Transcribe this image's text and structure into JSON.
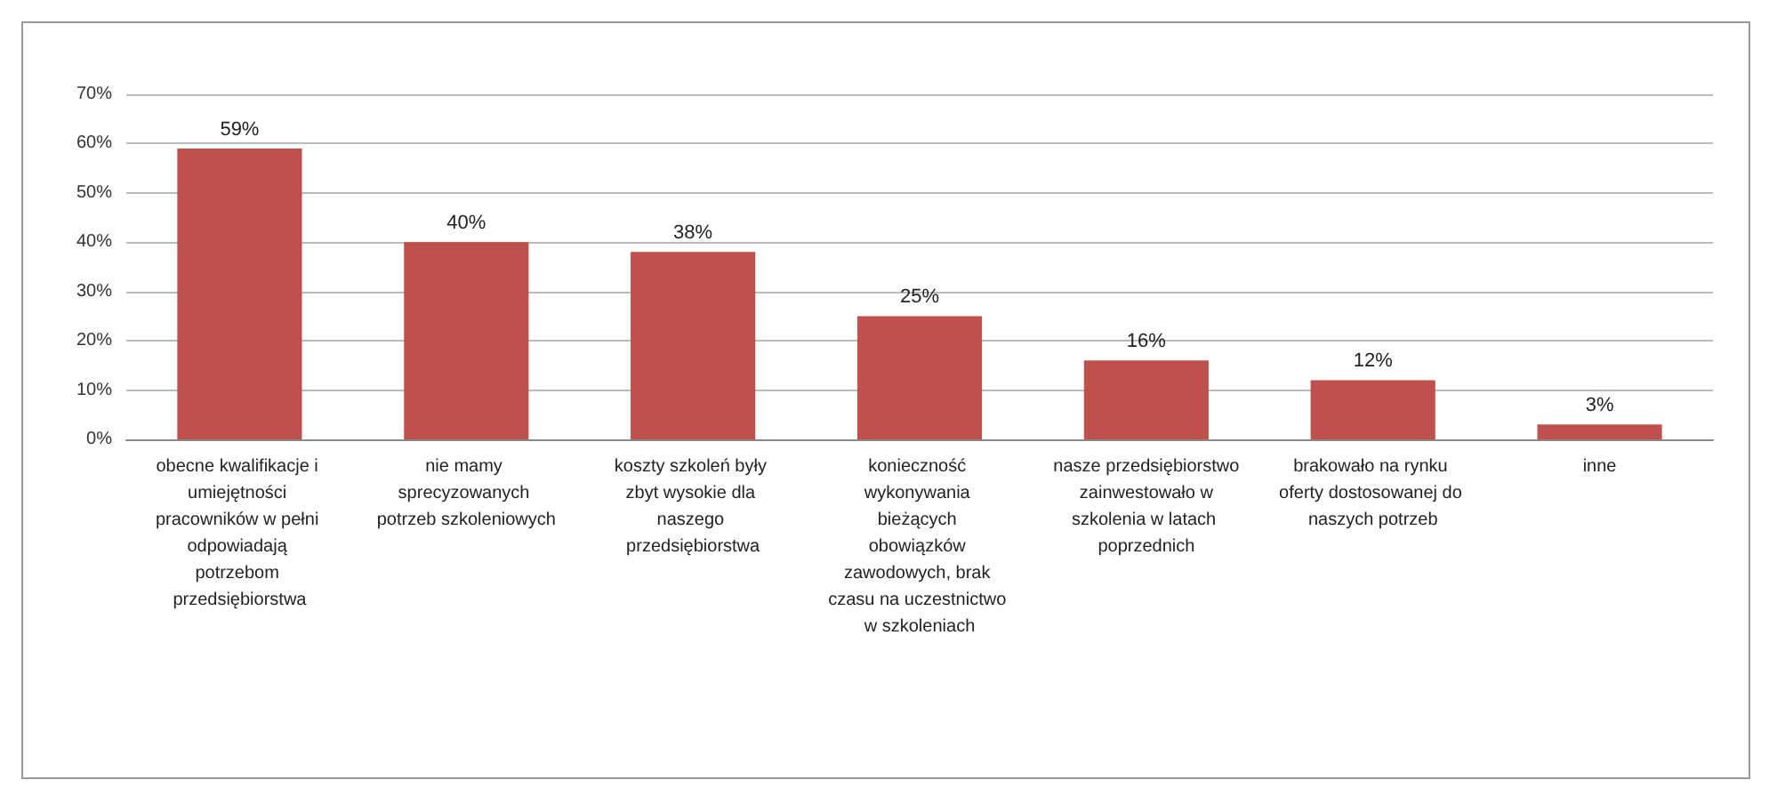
{
  "chart_data": {
    "type": "bar",
    "categories": [
      "obecne kwalifikacje i umiejętności pracowników w pełni odpowiadają potrzebom przedsiębiorstwa",
      "nie mamy sprecyzowanych potrzeb szkoleniowych",
      "koszty szkoleń były zbyt wysokie dla naszego przedsiębiorstwa",
      "konieczność wykonywania bieżących obowiązków zawodowych, brak czasu na uczestnictwo w szkoleniach",
      "nasze przedsiębiorstwo zainwestowało w szkolenia w latach poprzednich",
      "brakowało na rynku oferty dostosowanej do naszych potrzeb",
      "inne"
    ],
    "values": [
      59,
      40,
      38,
      25,
      16,
      12,
      3
    ],
    "value_labels": [
      "59%",
      "40%",
      "38%",
      "25%",
      "16%",
      "12%",
      "3%"
    ],
    "color": "#c0504d",
    "ylim": [
      0,
      70
    ],
    "yticks": [
      {
        "value": 0,
        "label": "0%"
      },
      {
        "value": 10,
        "label": "10%"
      },
      {
        "value": 20,
        "label": "20%"
      },
      {
        "value": 30,
        "label": "30%"
      },
      {
        "value": 40,
        "label": "40%"
      },
      {
        "value": 50,
        "label": "50%"
      },
      {
        "value": 60,
        "label": "60%"
      },
      {
        "value": 70,
        "label": "70%"
      }
    ],
    "grid": "y"
  }
}
